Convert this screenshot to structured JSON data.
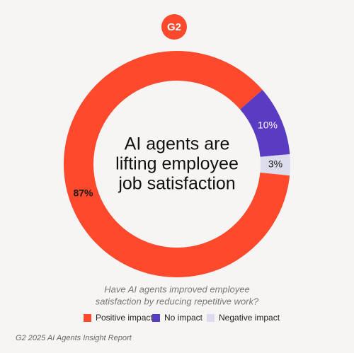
{
  "logo": "G2",
  "chart_data": {
    "type": "donut",
    "title_lines": [
      "AI agents are",
      "lifting employee",
      "job satisfaction"
    ],
    "subtitle_lines": [
      "Have AI agents improved employee",
      "satisfaction by reducing repetitive work?"
    ],
    "categories": [
      "Positive impact",
      "No impact",
      "Negative impact"
    ],
    "values": [
      87,
      10,
      3
    ],
    "value_labels": [
      "87%",
      "10%",
      "3%"
    ],
    "colors": [
      "#ff492c",
      "#5a3cc2",
      "#dddcec"
    ],
    "label_colors": [
      "#1a1a1a",
      "#ffffff",
      "#1a1a1a"
    ],
    "source": "G2 2025 AI Agents Insight Report"
  }
}
